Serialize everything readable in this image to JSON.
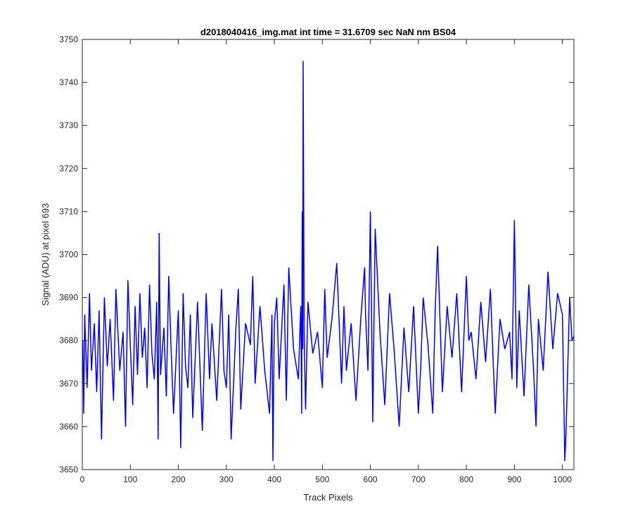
{
  "chart_data": {
    "type": "line",
    "title": "d2018040416_img.mat int time = 31.6709 sec  NaN nm BS04",
    "xlabel": "Track Pixels",
    "ylabel": "Signal (ADU) at pixel 693",
    "xlim": [
      0,
      1024
    ],
    "ylim": [
      3650,
      3750
    ],
    "x_ticks": [
      0,
      100,
      200,
      300,
      400,
      500,
      600,
      700,
      800,
      900,
      1000
    ],
    "y_ticks": [
      3650,
      3660,
      3670,
      3680,
      3690,
      3700,
      3710,
      3720,
      3730,
      3740,
      3750
    ],
    "grid": false,
    "legend": "none",
    "series_color": "#0000ff",
    "series": [
      {
        "x": [
          1,
          3,
          5,
          10,
          15,
          19,
          25,
          30,
          35,
          40,
          46,
          52,
          58,
          65,
          70,
          78,
          85,
          90,
          95,
          100,
          105,
          110,
          115,
          120,
          125,
          130,
          135,
          140,
          145,
          150,
          155,
          158,
          160,
          163,
          170,
          175,
          180,
          185,
          190,
          200,
          205,
          210,
          215,
          220,
          225,
          230,
          240,
          250,
          258,
          265,
          270,
          280,
          290,
          295,
          300,
          305,
          310,
          320,
          325,
          330,
          340,
          350,
          355,
          360,
          370,
          380,
          390,
          395,
          397,
          400,
          405,
          410,
          420,
          425,
          430,
          440,
          450,
          455,
          457,
          458,
          459,
          460,
          462,
          465,
          470,
          480,
          490,
          500,
          505,
          510,
          520,
          530,
          540,
          545,
          550,
          560,
          570,
          580,
          588,
          590,
          595,
          600,
          605,
          610,
          620,
          630,
          640,
          650,
          660,
          670,
          680,
          690,
          700,
          705,
          710,
          720,
          730,
          735,
          740,
          750,
          760,
          770,
          780,
          790,
          800,
          805,
          810,
          820,
          830,
          840,
          850,
          860,
          870,
          880,
          890,
          895,
          900,
          905,
          910,
          920,
          930,
          940,
          945,
          950,
          960,
          970,
          980,
          990,
          1000,
          1005,
          1008,
          1010,
          1015,
          1020,
          1024
        ],
        "values": [
          3680,
          3663,
          3686,
          3669,
          3691,
          3673,
          3684,
          3668,
          3687,
          3657,
          3690,
          3674,
          3685,
          3666,
          3692,
          3673,
          3682,
          3660,
          3694,
          3679,
          3665,
          3688,
          3672,
          3691,
          3676,
          3683,
          3669,
          3693,
          3677,
          3671,
          3689,
          3657,
          3705,
          3672,
          3683,
          3667,
          3695,
          3678,
          3663,
          3687,
          3655,
          3691,
          3674,
          3669,
          3686,
          3662,
          3689,
          3659,
          3691,
          3671,
          3684,
          3666,
          3692,
          3673,
          3669,
          3686,
          3657,
          3683,
          3692,
          3664,
          3684,
          3679,
          3695,
          3670,
          3688,
          3673,
          3663,
          3686,
          3652,
          3684,
          3690,
          3671,
          3693,
          3666,
          3697,
          3678,
          3671,
          3688,
          3663,
          3710,
          3678,
          3745,
          3682,
          3664,
          3689,
          3677,
          3682,
          3669,
          3692,
          3676,
          3685,
          3698,
          3670,
          3688,
          3673,
          3684,
          3666,
          3685,
          3697,
          3686,
          3673,
          3710,
          3661,
          3706,
          3682,
          3665,
          3691,
          3677,
          3660,
          3683,
          3668,
          3688,
          3663,
          3674,
          3690,
          3679,
          3663,
          3687,
          3702,
          3668,
          3688,
          3676,
          3691,
          3668,
          3695,
          3680,
          3682,
          3671,
          3689,
          3675,
          3692,
          3663,
          3685,
          3678,
          3682,
          3671,
          3708,
          3669,
          3687,
          3667,
          3693,
          3673,
          3660,
          3685,
          3673,
          3696,
          3678,
          3691,
          3686,
          3652,
          3660,
          3669,
          3690,
          3680,
          3681
        ]
      }
    ]
  }
}
